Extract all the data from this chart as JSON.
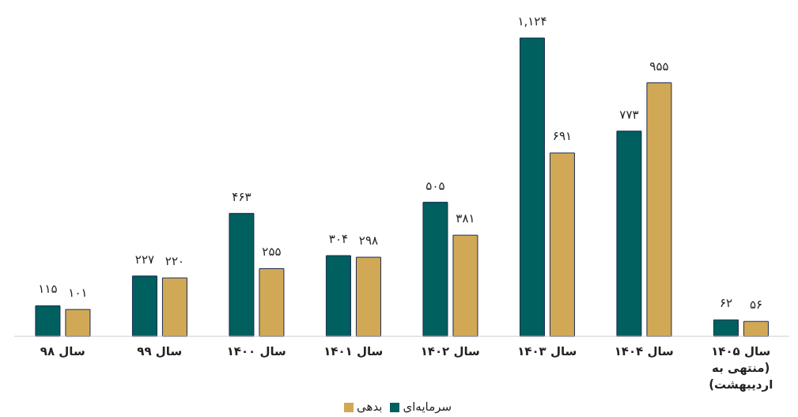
{
  "chart_data": {
    "type": "bar",
    "categories": [
      "سال ۹۸",
      "سال ۹۹",
      "سال ۱۴۰۰",
      "سال ۱۴۰۱",
      "سال ۱۴۰۲",
      "سال ۱۴۰۳",
      "سال ۱۴۰۴",
      "سال ۱۴۰۵ (منتهی به اردیبهشت)"
    ],
    "series": [
      {
        "name": "سرمایه‌ای",
        "color": "#005f5f",
        "values": [
          115,
          227,
          463,
          304,
          505,
          1124,
          773,
          62
        ],
        "value_labels": [
          "۱۱۵",
          "۲۲۷",
          "۴۶۳",
          "۳۰۴",
          "۵۰۵",
          "۱,۱۲۴",
          "۷۷۳",
          "۶۲"
        ]
      },
      {
        "name": "بدهی",
        "color": "#d1a956",
        "values": [
          101,
          220,
          255,
          298,
          381,
          691,
          955,
          56
        ],
        "value_labels": [
          "۱۰۱",
          "۲۲۰",
          "۲۵۵",
          "۲۹۸",
          "۳۸۱",
          "۶۹۱",
          "۹۵۵",
          "۵۶"
        ]
      }
    ],
    "legend": "bottom",
    "grid": false
  }
}
